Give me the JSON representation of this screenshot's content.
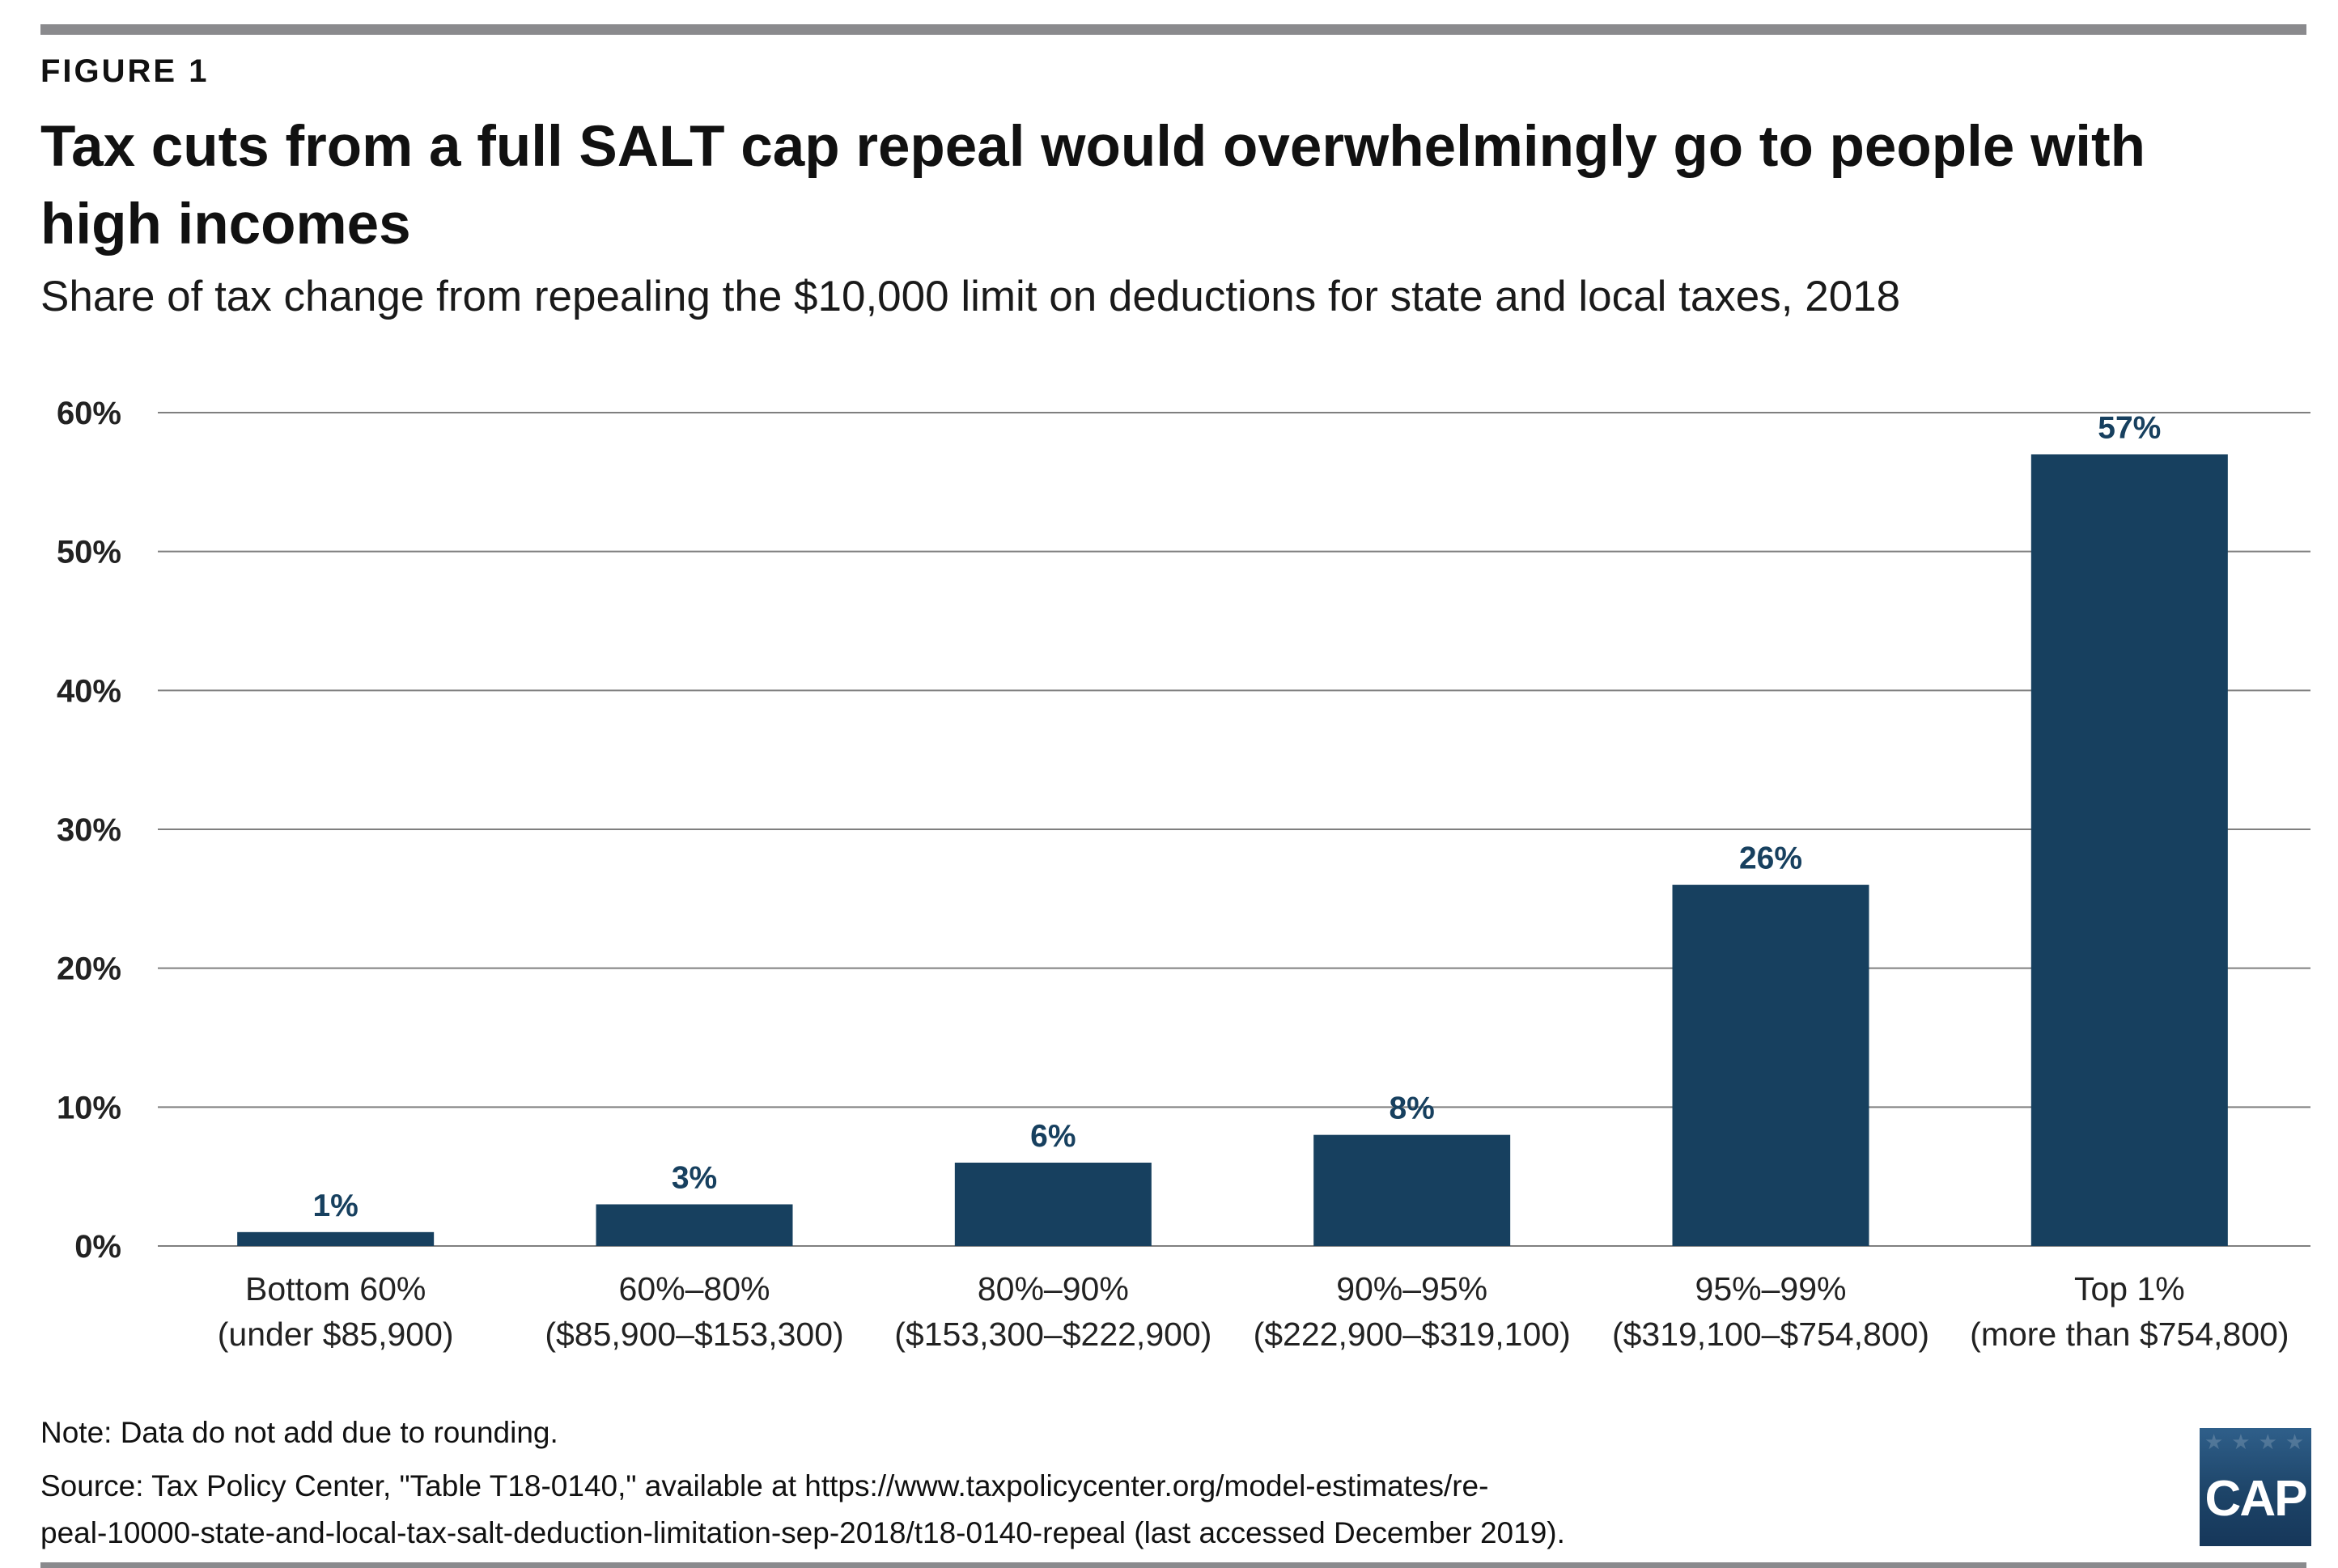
{
  "header": {
    "figure_label": "FIGURE 1",
    "title": "Tax cuts from a full SALT cap repeal would overwhelmingly go to people with high incomes",
    "subtitle": "Share of tax change from repealing the $10,000 limit on deductions for state and local taxes, 2018"
  },
  "chart_data": {
    "type": "bar",
    "title": "Tax cuts from a full SALT cap repeal would overwhelmingly go to people with high incomes",
    "subtitle": "Share of tax change from repealing the $10,000 limit on deductions for state and local taxes, 2018",
    "categories": [
      [
        "Bottom 60%",
        "(under $85,900)"
      ],
      [
        "60%–80%",
        "($85,900–$153,300)"
      ],
      [
        "80%–90%",
        "($153,300–$222,900)"
      ],
      [
        "90%–95%",
        "($222,900–$319,100)"
      ],
      [
        "95%–99%",
        "($319,100–$754,800)"
      ],
      [
        "Top 1%",
        "(more than $754,800)"
      ]
    ],
    "values": [
      1,
      3,
      6,
      8,
      26,
      57
    ],
    "value_labels": [
      "1%",
      "3%",
      "6%",
      "8%",
      "26%",
      "57%"
    ],
    "y_ticks": [
      0,
      10,
      20,
      30,
      40,
      50,
      60
    ],
    "y_tick_labels": [
      "0%",
      "10%",
      "20%",
      "30%",
      "40%",
      "50%",
      "60%"
    ],
    "ylim": [
      0,
      60
    ],
    "xlabel": "",
    "ylabel": "",
    "grid": true,
    "legend": "none",
    "bar_color": "#17405f",
    "grid_color": "#7f7f7f"
  },
  "footer": {
    "note": "Note: Data do not add due to rounding.",
    "source_line1": "Source: Tax Policy Center, \"Table T18-0140,\" available at https://www.taxpolicycenter.org/model-estimates/re-",
    "source_line2": "peal-10000-state-and-local-tax-salt-deduction-limitation-sep-2018/t18-0140-repeal (last accessed December 2019).",
    "logo_text": "CAP"
  }
}
